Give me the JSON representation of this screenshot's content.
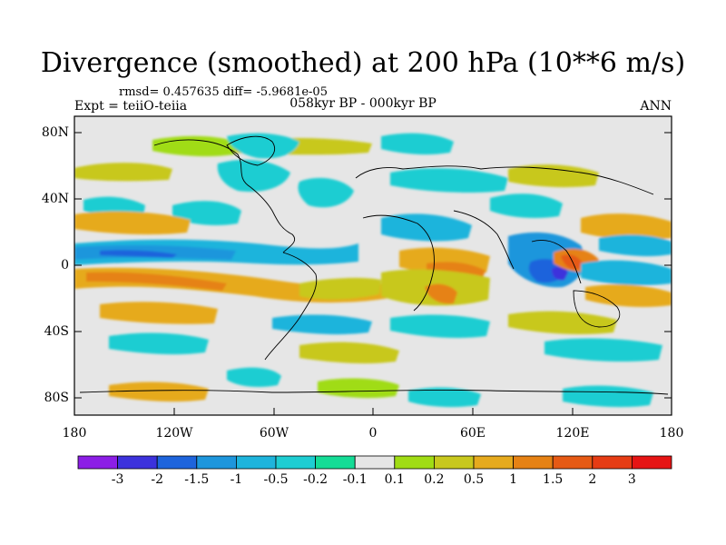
{
  "title": "Divergence (smoothed) at 200 hPa (10**6 m/s)",
  "stats": "rmsd= 0.457635  diff= -5.9681e-05",
  "experiment": "Expt = teiiO-teiia",
  "period": "058kyr BP - 000kyr BP",
  "season": "ANN",
  "lat_labels": [
    "80N",
    "40N",
    "0",
    "40S",
    "80S"
  ],
  "lon_labels": [
    "180",
    "120W",
    "60W",
    "0",
    "60E",
    "120E",
    "180"
  ],
  "colorbar": {
    "labels": [
      "-3",
      "-2",
      "-1.5",
      "-1",
      "-0.5",
      "-0.2",
      "-0.1",
      "0.1",
      "0.2",
      "0.5",
      "1",
      "1.5",
      "2",
      "3"
    ],
    "colors": [
      "#8c1ee6",
      "#3c32dc",
      "#1e64dc",
      "#1e96dc",
      "#1eb4dc",
      "#1ecdd2",
      "#14dc96",
      "#e6e6e6",
      "#a0dc14",
      "#c8c81e",
      "#e6aa1e",
      "#e68214",
      "#e65a14",
      "#e63c14",
      "#e61414"
    ]
  },
  "colors": {
    "background": "#e6e6e6",
    "negative": "#1e96dc",
    "positive": "#e6aa1e"
  }
}
